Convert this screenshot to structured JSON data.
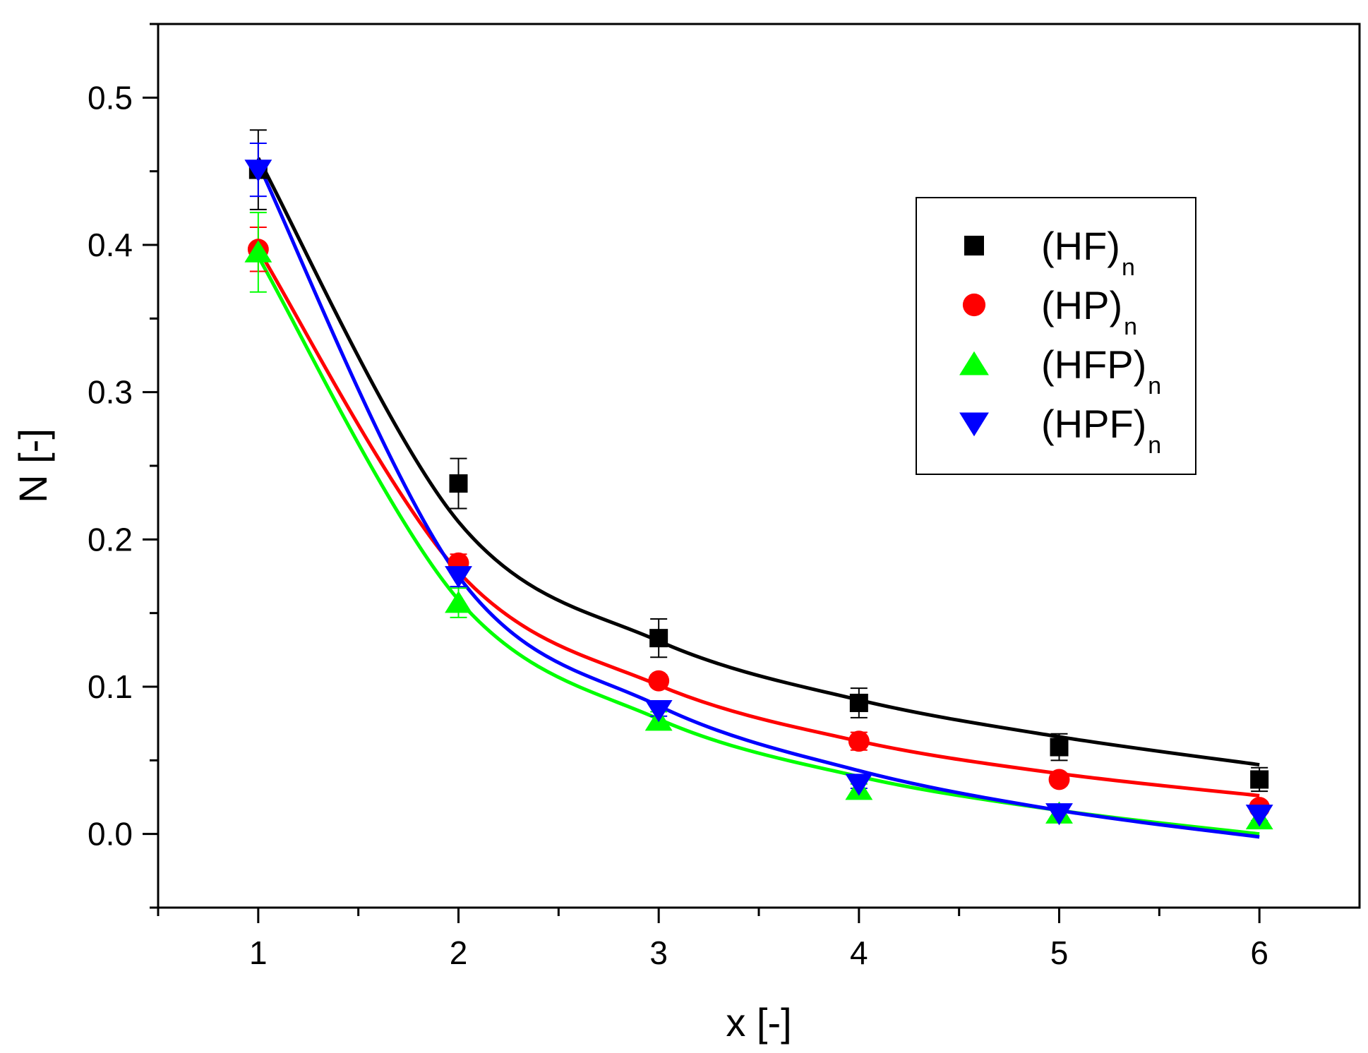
{
  "chart_data": {
    "type": "scatter",
    "title": "",
    "xlabel": "x [-]",
    "ylabel": "N [-]",
    "xlim": [
      0.5,
      6.5
    ],
    "ylim": [
      -0.05,
      0.55
    ],
    "x_ticks": [
      "1",
      "2",
      "3",
      "4",
      "5",
      "6"
    ],
    "y_ticks": [
      "0.0",
      "0.1",
      "0.2",
      "0.3",
      "0.4",
      "0.5"
    ],
    "grid": false,
    "legend_position": "top-right",
    "series": [
      {
        "name": "(HF)",
        "subscript": "n",
        "marker": "square",
        "color": "#000000",
        "x": [
          1,
          2,
          3,
          4,
          5,
          6
        ],
        "y": [
          0.451,
          0.238,
          0.133,
          0.089,
          0.059,
          0.037
        ],
        "error": [
          0.027,
          0.017,
          0.013,
          0.01,
          0.009,
          0.008
        ],
        "fit": [
          0.459,
          0.212,
          0.131,
          0.091,
          0.066,
          0.047
        ]
      },
      {
        "name": "(HP)",
        "subscript": "n",
        "marker": "circle",
        "color": "#ff0000",
        "x": [
          1,
          2,
          3,
          4,
          5,
          6
        ],
        "y": [
          0.397,
          0.184,
          0.104,
          0.063,
          0.037,
          0.018
        ],
        "error": [
          0.015,
          0.006,
          0.004,
          0.006,
          0.004,
          0.004
        ],
        "fit": [
          0.397,
          0.178,
          0.101,
          0.063,
          0.041,
          0.026
        ]
      },
      {
        "name": "(HFP)",
        "subscript": "n",
        "marker": "triangle-up",
        "color": "#00ff00",
        "x": [
          1,
          2,
          3,
          4,
          5,
          6
        ],
        "y": [
          0.395,
          0.157,
          0.077,
          0.03,
          0.014,
          0.01
        ],
        "error": [
          0.027,
          0.01,
          0.006,
          0.004,
          0.004,
          0.004
        ],
        "fit": [
          0.392,
          0.159,
          0.078,
          0.039,
          0.016,
          0.0
        ]
      },
      {
        "name": "(HPF)",
        "subscript": "n",
        "marker": "triangle-down",
        "color": "#0000ff",
        "x": [
          1,
          2,
          3,
          4,
          5,
          6
        ],
        "y": [
          0.451,
          0.175,
          0.084,
          0.034,
          0.014,
          0.013
        ],
        "error": [
          0.018,
          0.007,
          0.004,
          0.003,
          0.004,
          0.004
        ],
        "fit": [
          0.455,
          0.175,
          0.087,
          0.043,
          0.016,
          -0.002
        ]
      }
    ]
  }
}
